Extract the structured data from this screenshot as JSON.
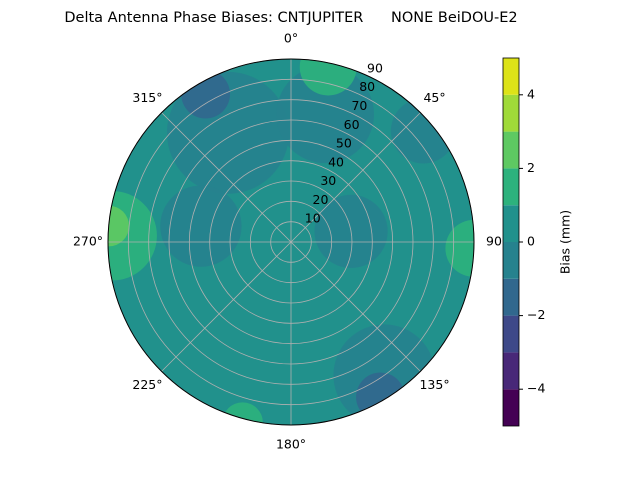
{
  "chart_data": {
    "type": "polar_contour",
    "title": "Delta Antenna Phase Biases: CNTJUPITER      NONE BeiDOU-E2",
    "rlim": [
      0,
      90
    ],
    "rticks": [
      10,
      20,
      30,
      40,
      50,
      60,
      70,
      80,
      90
    ],
    "thetaticks": [
      {
        "value": 0,
        "label": "0°"
      },
      {
        "value": 45,
        "label": "45°"
      },
      {
        "value": 90,
        "label": "90"
      },
      {
        "value": 135,
        "label": "135°"
      },
      {
        "value": 180,
        "label": "180°"
      },
      {
        "value": 225,
        "label": "225°"
      },
      {
        "value": 270,
        "label": "270°"
      },
      {
        "value": 315,
        "label": "315°"
      }
    ],
    "grid": true,
    "levels": [
      -5,
      -4,
      -3,
      -2,
      -1,
      0,
      1,
      2,
      3,
      4,
      5
    ],
    "colors": [
      "#440154",
      "#482878",
      "#3e4989",
      "#31688e",
      "#26828e",
      "#21918c",
      "#2db27d",
      "#5ec962",
      "#a0da39",
      "#dde318"
    ],
    "background_value": 0.5,
    "regions": [
      {
        "theta": 330,
        "r": 62,
        "spread": 30,
        "value": -0.5
      },
      {
        "theta": 15,
        "r": 65,
        "spread": 24,
        "value": -0.5
      },
      {
        "theta": 330,
        "r": 84,
        "spread": 12,
        "value": -1.5
      },
      {
        "theta": 50,
        "r": 85,
        "spread": 16,
        "value": -0.5
      },
      {
        "theta": 80,
        "r": 30,
        "spread": 18,
        "value": -0.5
      },
      {
        "theta": 280,
        "r": 45,
        "spread": 20,
        "value": -0.5
      },
      {
        "theta": 145,
        "r": 80,
        "spread": 25,
        "value": -0.5
      },
      {
        "theta": 150,
        "r": 88,
        "spread": 12,
        "value": -1.5
      },
      {
        "theta": 12,
        "r": 88,
        "spread": 14,
        "value": 1.5
      },
      {
        "theta": 92,
        "r": 90,
        "spread": 14,
        "value": 1.5
      },
      {
        "theta": 272,
        "r": 88,
        "spread": 22,
        "value": 1.5
      },
      {
        "theta": 275,
        "r": 90,
        "spread": 10,
        "value": 2.5
      },
      {
        "theta": 195,
        "r": 92,
        "spread": 10,
        "value": 1.5
      }
    ],
    "colorbar": {
      "label": "Bias (mm)",
      "lim": [
        -5,
        5
      ],
      "ticks": [
        {
          "value": -4,
          "label": "−4"
        },
        {
          "value": -2,
          "label": "−2"
        },
        0,
        2,
        4
      ]
    }
  }
}
